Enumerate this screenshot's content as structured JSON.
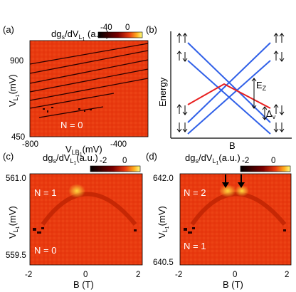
{
  "figure": {
    "a": {
      "label": "(a)",
      "colorbar_title": "dg",
      "colorbar_sub": "s",
      "colorbar_rest": "/dV",
      "colorbar_sub2": "L",
      "colorbar_sub3": "1",
      "colorbar_units": " (a.u.)",
      "colorbar_ticks": [
        "-40",
        "0"
      ],
      "ylabel": "V",
      "ylabel_sub": "L",
      "ylabel_sub2": "1",
      "ylabel_units": "(mV)",
      "yticks": [
        "900",
        "450"
      ],
      "xticks": [
        "-800",
        "-400"
      ],
      "xlabel": "V",
      "xlabel_sub": "LB",
      "xlabel_sub2": "1",
      "xlabel_units": "(mV)",
      "annotation": "N = 0"
    },
    "b": {
      "label": "(b)",
      "ylabel": "Energy",
      "xlabel": "B",
      "ez_label": "E",
      "ez_sub": "Z",
      "dv_label": "Δ",
      "dv_sub": "v"
    },
    "c": {
      "label": "(c)",
      "colorbar_title": "dg",
      "colorbar_sub": "s",
      "colorbar_rest": "/dV",
      "colorbar_sub2": "L",
      "colorbar_sub3": "1",
      "colorbar_units": "(a.u.)",
      "colorbar_ticks": [
        "-2",
        "0"
      ],
      "ylabel": "V",
      "ylabel_sub": "L",
      "ylabel_sub2": "1",
      "ylabel_units": "(mV)",
      "yticks": [
        "561.0",
        "559.5"
      ],
      "xticks": [
        "-2",
        "0",
        "2"
      ],
      "xlabel": "B (T)",
      "annotation_top": "N = 1",
      "annotation_bottom": "N = 0"
    },
    "d": {
      "label": "(d)",
      "colorbar_title": "dg",
      "colorbar_sub": "s",
      "colorbar_rest": "/dV",
      "colorbar_sub2": "L",
      "colorbar_sub3": "1",
      "colorbar_units": "(a.u.)",
      "colorbar_ticks": [
        "-2",
        "0"
      ],
      "ylabel": "V",
      "ylabel_sub": "L",
      "ylabel_sub2": "1",
      "ylabel_units": "(mV)",
      "yticks": [
        "642.0",
        "640.5"
      ],
      "xticks": [
        "-2",
        "0",
        "2"
      ],
      "xlabel": "B (T)",
      "annotation_top": "N = 2",
      "annotation_bottom": "N = 1"
    }
  },
  "colors": {
    "map_background": "#e83a10",
    "map_dark": "#2a0000",
    "map_bright": "#ffe040",
    "level_blue": "#3060e8",
    "level_red": "#e82020"
  }
}
